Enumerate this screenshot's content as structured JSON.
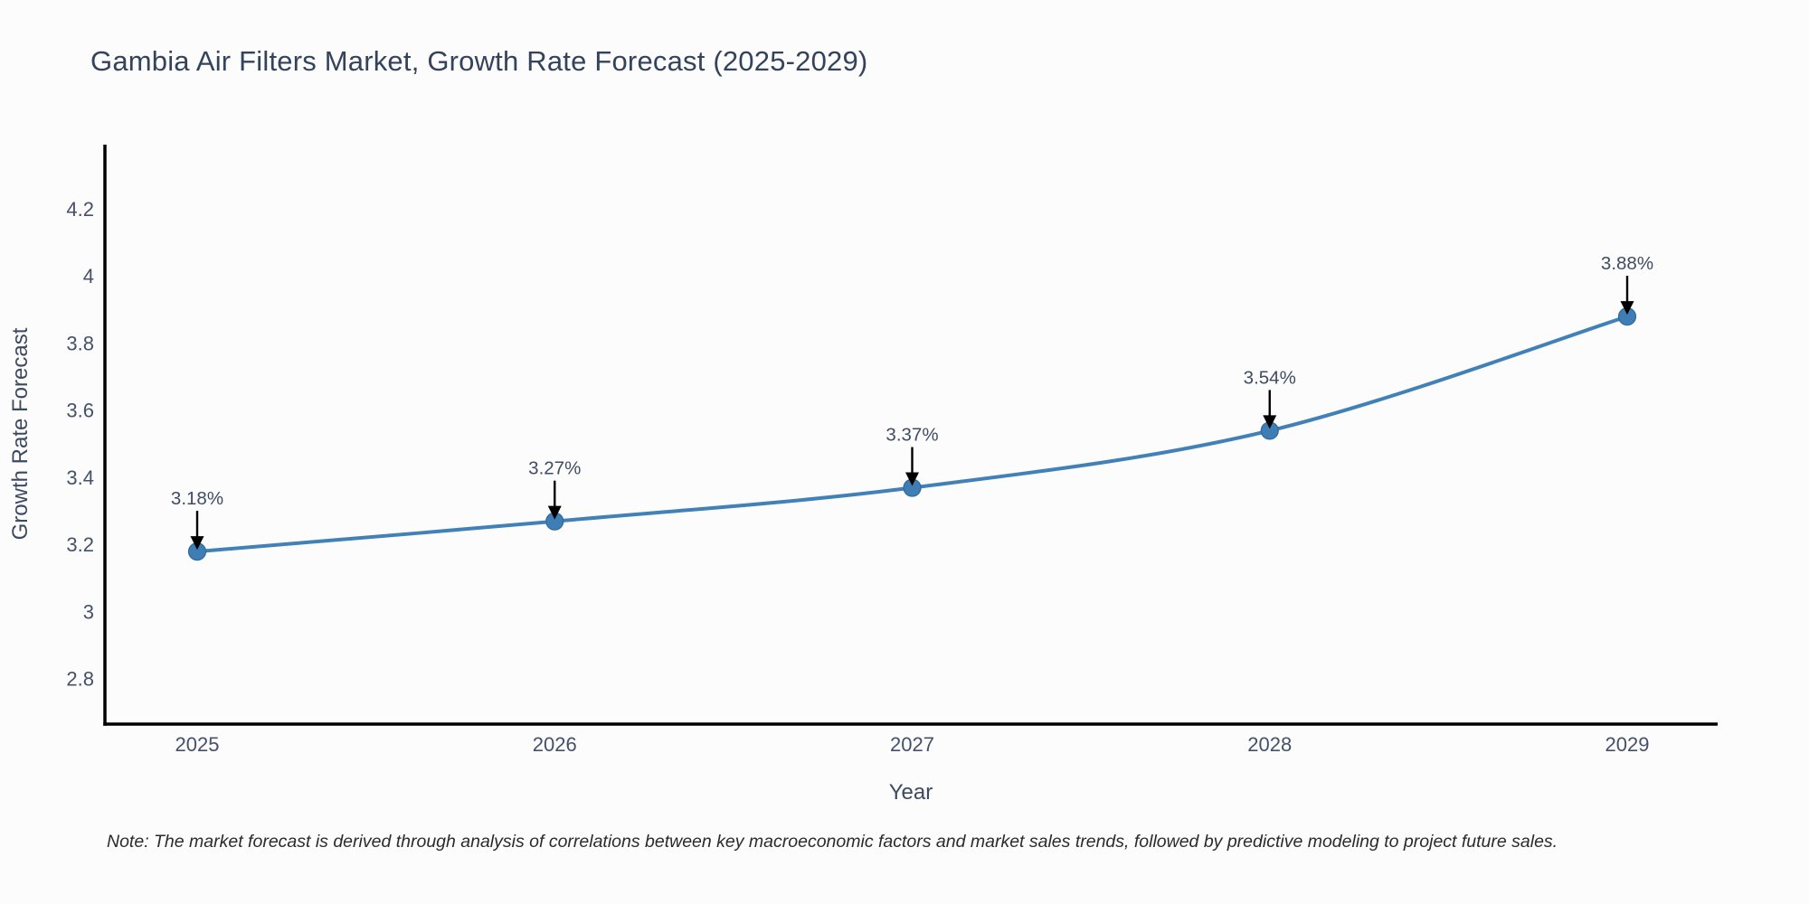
{
  "title": "Gambia Air Filters Market, Growth Rate Forecast (2025-2029)",
  "note": "Note: The market forecast is derived through analysis of correlations between key macroeconomic factors and market sales trends, followed by predictive modeling to project future sales.",
  "chart_data": {
    "type": "line",
    "title": "Gambia Air Filters Market, Growth Rate Forecast (2025-2029)",
    "xlabel": "Year",
    "ylabel": "Growth Rate Forecast",
    "categories": [
      "2025",
      "2026",
      "2027",
      "2028",
      "2029"
    ],
    "values": [
      3.18,
      3.27,
      3.37,
      3.54,
      3.88
    ],
    "point_labels": [
      "3.18%",
      "3.27%",
      "3.37%",
      "3.54%",
      "3.88%"
    ],
    "ytick_values": [
      2.8,
      3.0,
      3.2,
      3.4,
      3.6,
      3.8,
      4.0,
      4.2
    ],
    "ytick_labels": [
      "2.8",
      "3",
      "3.2",
      "3.4",
      "3.6",
      "3.8",
      "4",
      "4.2"
    ],
    "ylim": [
      2.666,
      4.392
    ],
    "grid": false,
    "legend": null,
    "colors": {
      "line": "#4181b8",
      "marker": "#3f7eb5",
      "marker_edge": "#31689a",
      "axis": "#000000",
      "arrow": "#000000",
      "text": "#34435c",
      "background": "#fcfcfc"
    }
  }
}
